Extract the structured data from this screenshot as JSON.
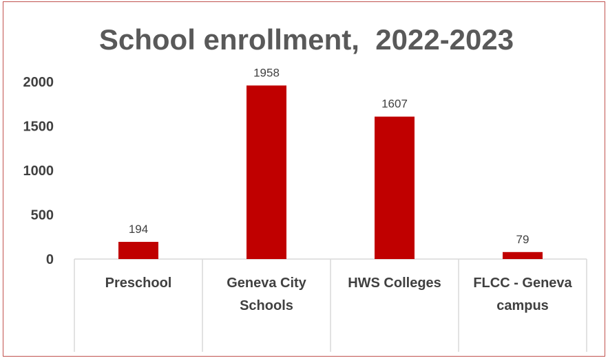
{
  "chart_data": {
    "type": "bar",
    "title": "School enrollment,  2022-2023",
    "categories": [
      [
        "Preschool"
      ],
      [
        "Geneva City",
        "Schools"
      ],
      [
        "HWS Colleges"
      ],
      [
        "FLCC - Geneva",
        "campus"
      ]
    ],
    "values": [
      194,
      1958,
      1607,
      79
    ],
    "data_labels": [
      "194",
      "1958",
      "1607",
      "79"
    ],
    "yticks": [
      0,
      500,
      1000,
      1500,
      2000
    ],
    "ylim": [
      0,
      2000
    ],
    "xlabel": "",
    "ylabel": "",
    "grid": false,
    "legend": "none",
    "bar_color": "#c00000",
    "frame_color": "#c0504d",
    "axis_line_color": "#d9d9d9"
  }
}
